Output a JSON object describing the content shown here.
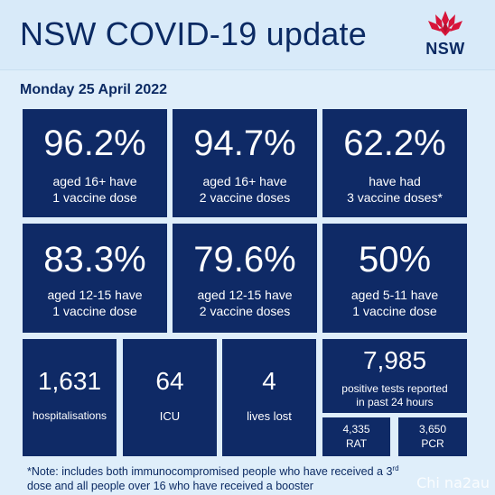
{
  "header": {
    "title": "NSW COVID-19 update",
    "logo_text": "NSW",
    "logo_icon": "waratah-flower-icon",
    "logo_color": "#d7153a"
  },
  "date": "Monday 25 April 2022",
  "vaccination": [
    {
      "value": "96.2%",
      "line1": "aged 16+ have",
      "line2": "1 vaccine dose"
    },
    {
      "value": "94.7%",
      "line1": "aged 16+ have",
      "line2": "2 vaccine doses"
    },
    {
      "value": "62.2%",
      "line1": "have had",
      "line2": "3 vaccine doses*"
    },
    {
      "value": "83.3%",
      "line1": "aged 12-15 have",
      "line2": "1 vaccine dose"
    },
    {
      "value": "79.6%",
      "line1": "aged 12-15 have",
      "line2": "2 vaccine doses"
    },
    {
      "value": "50%",
      "line1": "aged 5-11 have",
      "line2": "1 vaccine dose"
    }
  ],
  "stats": {
    "hospitalisations": {
      "value": "1,631",
      "label": "hospitalisations"
    },
    "icu": {
      "value": "64",
      "label": "ICU"
    },
    "deaths": {
      "value": "4",
      "label": "lives lost"
    },
    "positive_tests": {
      "value": "7,985",
      "line1": "positive tests reported",
      "line2": "in past 24 hours"
    },
    "rat": {
      "value": "4,335",
      "label": "RAT"
    },
    "pcr": {
      "value": "3,650",
      "label": "PCR"
    }
  },
  "note": {
    "line1_pre": "*Note: includes both immunocompromised  people who have received a 3",
    "line1_sup": "rd",
    "line2": "dose and all people over 16 who have received a booster"
  },
  "watermark": "Chi na2au",
  "colors": {
    "tile_bg": "#0f2a66",
    "page_bg": "#dfeefa",
    "title_text": "#0b2a63"
  }
}
